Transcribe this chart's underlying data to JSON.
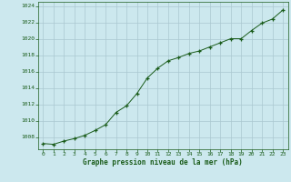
{
  "x": [
    0,
    1,
    2,
    3,
    4,
    5,
    6,
    7,
    8,
    9,
    10,
    11,
    12,
    13,
    14,
    15,
    16,
    17,
    18,
    19,
    20,
    21,
    22,
    23
  ],
  "y": [
    1007.2,
    1007.1,
    1007.5,
    1007.8,
    1008.2,
    1008.8,
    1009.5,
    1011.0,
    1011.8,
    1013.3,
    1015.2,
    1016.4,
    1017.3,
    1017.7,
    1018.2,
    1018.5,
    1019.0,
    1019.5,
    1020.0,
    1020.0,
    1021.0,
    1021.9,
    1022.4,
    1023.5
  ],
  "line_color": "#1a5c1a",
  "marker": "+",
  "bg_color": "#cce8ee",
  "grid_color": "#aac8d0",
  "xlabel": "Graphe pression niveau de la mer (hPa)",
  "xlabel_color": "#1a5c1a",
  "tick_color": "#1a5c1a",
  "ylim": [
    1006.5,
    1024.5
  ],
  "xlim": [
    -0.5,
    23.5
  ],
  "yticks": [
    1008,
    1010,
    1012,
    1014,
    1016,
    1018,
    1020,
    1022,
    1024
  ],
  "xticks": [
    0,
    1,
    2,
    3,
    4,
    5,
    6,
    7,
    8,
    9,
    10,
    11,
    12,
    13,
    14,
    15,
    16,
    17,
    18,
    19,
    20,
    21,
    22,
    23
  ]
}
